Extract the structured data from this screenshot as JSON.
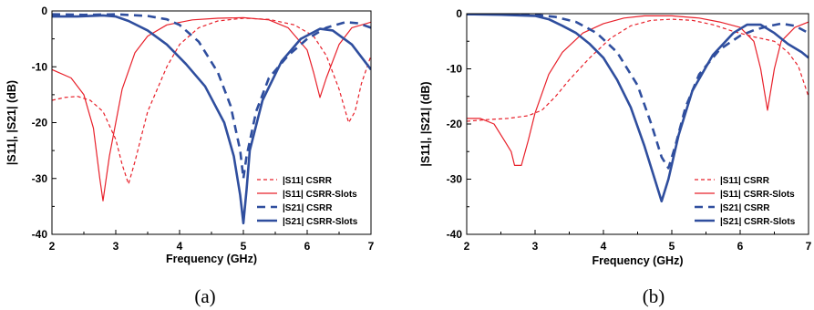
{
  "colors": {
    "s11": "#e8202a",
    "s21": "#2f4e9e",
    "axis": "#000000"
  },
  "chart_data": [
    {
      "type": "line",
      "caption": "(a)",
      "xlabel": "Frequency (GHz)",
      "ylabel": "|S11|, |S21| (dB)",
      "xlim": [
        2,
        7
      ],
      "ylim": [
        -40,
        0
      ],
      "xticks": [
        2,
        3,
        4,
        5,
        6,
        7
      ],
      "yticks": [
        0,
        -10,
        -20,
        -30,
        -40
      ],
      "grid": false,
      "legend": "bottom-right",
      "series": [
        {
          "name": "|S11| CSRR",
          "color": "s11",
          "style": "thin-dashed",
          "x": [
            2.0,
            2.2,
            2.4,
            2.6,
            2.8,
            3.0,
            3.1,
            3.2,
            3.3,
            3.5,
            3.8,
            4.0,
            4.3,
            4.6,
            5.0,
            5.4,
            5.8,
            6.1,
            6.3,
            6.5,
            6.65,
            6.75,
            6.85,
            7.0
          ],
          "y": [
            -16,
            -15.5,
            -15.3,
            -16,
            -18,
            -23,
            -27.5,
            -31,
            -27,
            -18,
            -10,
            -6,
            -3,
            -1.8,
            -1.3,
            -1.5,
            -2.5,
            -4.5,
            -8,
            -14,
            -20,
            -18,
            -13,
            -8
          ]
        },
        {
          "name": "|S11| CSRR-Slots",
          "color": "s11",
          "style": "thin-solid",
          "x": [
            2.0,
            2.3,
            2.5,
            2.65,
            2.75,
            2.8,
            2.9,
            3.1,
            3.3,
            3.5,
            3.8,
            4.2,
            4.6,
            5.0,
            5.4,
            5.7,
            6.0,
            6.1,
            6.2,
            6.3,
            6.5,
            6.7,
            7.0
          ],
          "y": [
            -10.5,
            -12,
            -15,
            -21,
            -30,
            -34,
            -26,
            -14,
            -7.5,
            -4.5,
            -2.5,
            -1.6,
            -1.3,
            -1.2,
            -1.6,
            -3,
            -7,
            -11,
            -15.5,
            -12,
            -6,
            -3,
            -2
          ]
        },
        {
          "name": "|S21| CSRR",
          "color": "s21",
          "style": "thick-dashed",
          "x": [
            2.0,
            2.5,
            3.0,
            3.5,
            3.8,
            4.0,
            4.3,
            4.6,
            4.8,
            4.95,
            5.0,
            5.05,
            5.2,
            5.4,
            5.7,
            6.0,
            6.3,
            6.6,
            6.8,
            7.0
          ],
          "y": [
            -0.6,
            -0.7,
            -0.6,
            -0.9,
            -1.5,
            -2.5,
            -5.5,
            -11,
            -17,
            -25,
            -30,
            -26,
            -18,
            -12,
            -8,
            -5,
            -3,
            -2,
            -2.2,
            -3
          ]
        },
        {
          "name": "|S21| CSRR-Slots",
          "color": "s21",
          "style": "thick-solid",
          "x": [
            2.0,
            2.4,
            2.8,
            3.0,
            3.2,
            3.5,
            3.8,
            4.1,
            4.4,
            4.7,
            4.85,
            4.95,
            5.0,
            5.05,
            5.1,
            5.3,
            5.6,
            5.9,
            6.2,
            6.4,
            6.7,
            7.0
          ],
          "y": [
            -1,
            -1,
            -0.8,
            -1,
            -1.8,
            -3.5,
            -6,
            -9.5,
            -13.5,
            -20,
            -26,
            -33,
            -38,
            -32,
            -25,
            -16,
            -9,
            -5,
            -3.2,
            -3.5,
            -6,
            -10.5
          ]
        }
      ]
    },
    {
      "type": "line",
      "caption": "(b)",
      "xlabel": "Frequency (GHz)",
      "ylabel": "|S11|, |S21| (dB)",
      "xlim": [
        2,
        7
      ],
      "ylim": [
        -40,
        0
      ],
      "xticks": [
        2,
        3,
        4,
        5,
        6,
        7
      ],
      "yticks": [
        0,
        -10,
        -20,
        -30,
        -40
      ],
      "grid": false,
      "legend": "bottom-right",
      "series": [
        {
          "name": "|S11| CSRR",
          "color": "s11",
          "style": "thin-dashed",
          "x": [
            2.0,
            2.3,
            2.6,
            2.9,
            3.1,
            3.3,
            3.5,
            3.8,
            4.1,
            4.4,
            4.7,
            5.0,
            5.3,
            5.6,
            5.9,
            6.2,
            6.5,
            6.7,
            6.85,
            7.0
          ],
          "y": [
            -19.5,
            -19.2,
            -19,
            -18.5,
            -17.5,
            -15,
            -12,
            -8,
            -4.5,
            -2.2,
            -1.2,
            -1,
            -1.2,
            -2,
            -3.2,
            -4.2,
            -5,
            -7,
            -9.5,
            -15
          ]
        },
        {
          "name": "|S11| CSRR-Slots",
          "color": "s11",
          "style": "thin-solid",
          "x": [
            2.0,
            2.2,
            2.4,
            2.55,
            2.65,
            2.7,
            2.8,
            2.9,
            3.0,
            3.2,
            3.4,
            3.7,
            4.0,
            4.3,
            4.6,
            5.0,
            5.4,
            5.7,
            6.0,
            6.2,
            6.3,
            6.4,
            6.5,
            6.6,
            6.8,
            7.0
          ],
          "y": [
            -19,
            -19,
            -20,
            -23,
            -25,
            -27.5,
            -27.5,
            -23,
            -18,
            -11,
            -7,
            -3.5,
            -1.8,
            -0.8,
            -0.4,
            -0.4,
            -0.8,
            -1.5,
            -2.5,
            -5,
            -10,
            -17.5,
            -10,
            -5,
            -2.5,
            -1.5
          ]
        },
        {
          "name": "|S21| CSRR",
          "color": "s21",
          "style": "thick-dashed",
          "x": [
            2.0,
            2.5,
            3.0,
            3.3,
            3.6,
            3.9,
            4.2,
            4.5,
            4.7,
            4.85,
            4.95,
            5.05,
            5.2,
            5.4,
            5.7,
            6.0,
            6.2,
            6.4,
            6.6,
            6.8,
            7.0
          ],
          "y": [
            -0.1,
            -0.1,
            -0.2,
            -0.6,
            -1.5,
            -3.5,
            -7,
            -13,
            -20,
            -26,
            -28,
            -24,
            -17,
            -11,
            -6.5,
            -4,
            -3,
            -2.3,
            -1.8,
            -2.2,
            -3.5
          ]
        },
        {
          "name": "|S21| CSRR-Slots",
          "color": "s21",
          "style": "thick-solid",
          "x": [
            2.0,
            2.5,
            3.0,
            3.2,
            3.4,
            3.6,
            3.8,
            4.0,
            4.2,
            4.4,
            4.6,
            4.75,
            4.85,
            4.95,
            5.1,
            5.3,
            5.6,
            5.9,
            6.1,
            6.3,
            6.5,
            6.7,
            6.9,
            7.0
          ],
          "y": [
            -0.1,
            -0.2,
            -0.4,
            -1,
            -2.2,
            -3.5,
            -5.5,
            -8,
            -12,
            -17,
            -24,
            -30,
            -34,
            -30,
            -22,
            -14,
            -7.5,
            -3.5,
            -2,
            -2,
            -3.5,
            -5.5,
            -7,
            -8
          ]
        }
      ]
    }
  ]
}
